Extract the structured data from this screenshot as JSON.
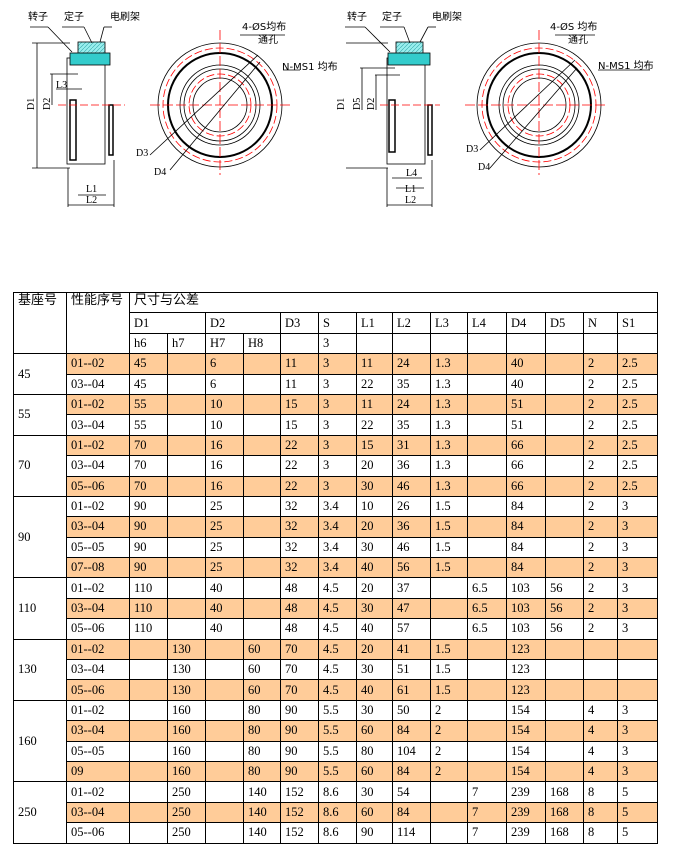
{
  "drawing_left": {
    "labels": {
      "rotor": "转子",
      "stator": "定子",
      "brush_holder": "电刷架",
      "holes": "4-ØS均布",
      "through_hole": "通孔",
      "nms1": "N-MS1 均布",
      "D1": "D1",
      "D2": "D2",
      "D3": "D3",
      "D4": "D4",
      "L1": "L1",
      "L2": "L2",
      "L3": "L3"
    }
  },
  "drawing_right": {
    "labels": {
      "rotor": "转子",
      "stator": "定子",
      "brush_holder": "电刷架",
      "holes": "4-ØS 均布",
      "through_hole": "通孔",
      "nms1": "N-MS1 均布",
      "D1": "D1",
      "D5": "D5",
      "D2": "D2",
      "D3": "D3",
      "D4": "D4",
      "L1": "L1",
      "L2": "L2",
      "L4": "L4"
    }
  },
  "colors": {
    "highlight": "#FFCC99",
    "center_line": "#FF0000",
    "cyan": "#33CCCC"
  },
  "table": {
    "header": {
      "base": "基座号",
      "seq": "性能序号",
      "dims": "尺寸与公差",
      "cols": [
        "D1",
        "D2",
        "D3",
        "S",
        "L1",
        "L2",
        "L3",
        "L4",
        "D4",
        "D5",
        "N",
        "S1"
      ],
      "tol": [
        "h6",
        "h7",
        "H7",
        "H8",
        "",
        "3",
        "",
        "",
        "",
        "",
        "",
        "",
        "",
        "",
        ""
      ]
    },
    "groups": [
      {
        "base": "45",
        "rows": [
          {
            "seq": "01--02",
            "hl": true,
            "v": [
              "45",
              "",
              "6",
              "",
              "11",
              "3",
              "11",
              "24",
              "1.3",
              "",
              "40",
              "",
              "2",
              "2.5"
            ]
          },
          {
            "seq": "03--04",
            "hl": false,
            "v": [
              "45",
              "",
              "6",
              "",
              "11",
              "3",
              "22",
              "35",
              "1.3",
              "",
              "40",
              "",
              "2",
              "2.5"
            ]
          }
        ]
      },
      {
        "base": "55",
        "rows": [
          {
            "seq": "01--02",
            "hl": true,
            "v": [
              "55",
              "",
              "10",
              "",
              "15",
              "3",
              "11",
              "24",
              "1.3",
              "",
              "51",
              "",
              "2",
              "2.5"
            ]
          },
          {
            "seq": "03--04",
            "hl": false,
            "v": [
              "55",
              "",
              "10",
              "",
              "15",
              "3",
              "22",
              "35",
              "1.3",
              "",
              "51",
              "",
              "2",
              "2.5"
            ]
          }
        ]
      },
      {
        "base": "70",
        "rows": [
          {
            "seq": "01--02",
            "hl": true,
            "v": [
              "70",
              "",
              "16",
              "",
              "22",
              "3",
              "15",
              "31",
              "1.3",
              "",
              "66",
              "",
              "2",
              "2.5"
            ]
          },
          {
            "seq": "03--04",
            "hl": false,
            "v": [
              "70",
              "",
              "16",
              "",
              "22",
              "3",
              "20",
              "36",
              "1.3",
              "",
              "66",
              "",
              "2",
              "2.5"
            ]
          },
          {
            "seq": "05--06",
            "hl": true,
            "v": [
              "70",
              "",
              "16",
              "",
              "22",
              "3",
              "30",
              "46",
              "1.3",
              "",
              "66",
              "",
              "2",
              "2.5"
            ]
          }
        ]
      },
      {
        "base": "90",
        "rows": [
          {
            "seq": "01--02",
            "hl": false,
            "v": [
              "90",
              "",
              "25",
              "",
              "32",
              "3.4",
              "10",
              "26",
              "1.5",
              "",
              "84",
              "",
              "2",
              "3"
            ]
          },
          {
            "seq": "03--04",
            "hl": true,
            "v": [
              "90",
              "",
              "25",
              "",
              "32",
              "3.4",
              "20",
              "36",
              "1.5",
              "",
              "84",
              "",
              "2",
              "3"
            ]
          },
          {
            "seq": "05--05",
            "hl": false,
            "v": [
              "90",
              "",
              "25",
              "",
              "32",
              "3.4",
              "30",
              "46",
              "1.5",
              "",
              "84",
              "",
              "2",
              "3"
            ]
          },
          {
            "seq": "07--08",
            "hl": true,
            "v": [
              "90",
              "",
              "25",
              "",
              "32",
              "3.4",
              "40",
              "56",
              "1.5",
              "",
              "84",
              "",
              "2",
              "3"
            ]
          }
        ]
      },
      {
        "base": "110",
        "rows": [
          {
            "seq": "01--02",
            "hl": false,
            "v": [
              "110",
              "",
              "40",
              "",
              "48",
              "4.5",
              "20",
              "37",
              "",
              "6.5",
              "103",
              "56",
              "2",
              "3"
            ]
          },
          {
            "seq": "03--04",
            "hl": true,
            "v": [
              "110",
              "",
              "40",
              "",
              "48",
              "4.5",
              "30",
              "47",
              "",
              "6.5",
              "103",
              "56",
              "2",
              "3"
            ]
          },
          {
            "seq": "05--06",
            "hl": false,
            "v": [
              "110",
              "",
              "40",
              "",
              "48",
              "4.5",
              "40",
              "57",
              "",
              "6.5",
              "103",
              "56",
              "2",
              "3"
            ]
          }
        ]
      },
      {
        "base": "130",
        "rows": [
          {
            "seq": "01--02",
            "hl": true,
            "v": [
              "",
              "130",
              "",
              "60",
              "70",
              "4.5",
              "20",
              "41",
              "1.5",
              "",
              "123",
              "",
              "",
              ""
            ]
          },
          {
            "seq": "03--04",
            "hl": false,
            "v": [
              "",
              "130",
              "",
              "60",
              "70",
              "4.5",
              "30",
              "51",
              "1.5",
              "",
              "123",
              "",
              "",
              ""
            ]
          },
          {
            "seq": "05--06",
            "hl": true,
            "v": [
              "",
              "130",
              "",
              "60",
              "70",
              "4.5",
              "40",
              "61",
              "1.5",
              "",
              "123",
              "",
              "",
              ""
            ]
          }
        ]
      },
      {
        "base": "160",
        "rows": [
          {
            "seq": "01--02",
            "hl": false,
            "v": [
              "",
              "160",
              "",
              "80",
              "90",
              "5.5",
              "30",
              "50",
              "2",
              "",
              "154",
              "",
              "4",
              "3"
            ]
          },
          {
            "seq": "03--04",
            "hl": true,
            "v": [
              "",
              "160",
              "",
              "80",
              "90",
              "5.5",
              "60",
              "84",
              "2",
              "",
              "154",
              "",
              "4",
              "3"
            ]
          },
          {
            "seq": "05--05",
            "hl": false,
            "v": [
              "",
              "160",
              "",
              "80",
              "90",
              "5.5",
              "80",
              "104",
              "2",
              "",
              "154",
              "",
              "4",
              "3"
            ]
          },
          {
            "seq": "09",
            "hl": true,
            "v": [
              "",
              "160",
              "",
              "80",
              "90",
              "5.5",
              "60",
              "84",
              "2",
              "",
              "154",
              "",
              "4",
              "3"
            ]
          }
        ]
      },
      {
        "base": "250",
        "rows": [
          {
            "seq": "01--02",
            "hl": false,
            "v": [
              "",
              "250",
              "",
              "140",
              "152",
              "8.6",
              "30",
              "54",
              "",
              "7",
              "239",
              "168",
              "8",
              "5"
            ]
          },
          {
            "seq": "03--04",
            "hl": true,
            "v": [
              "",
              "250",
              "",
              "140",
              "152",
              "8.6",
              "60",
              "84",
              "",
              "7",
              "239",
              "168",
              "8",
              "5"
            ]
          },
          {
            "seq": "05--06",
            "hl": false,
            "v": [
              "",
              "250",
              "",
              "140",
              "152",
              "8.6",
              "90",
              "114",
              "",
              "7",
              "239",
              "168",
              "8",
              "5"
            ]
          }
        ]
      }
    ]
  }
}
